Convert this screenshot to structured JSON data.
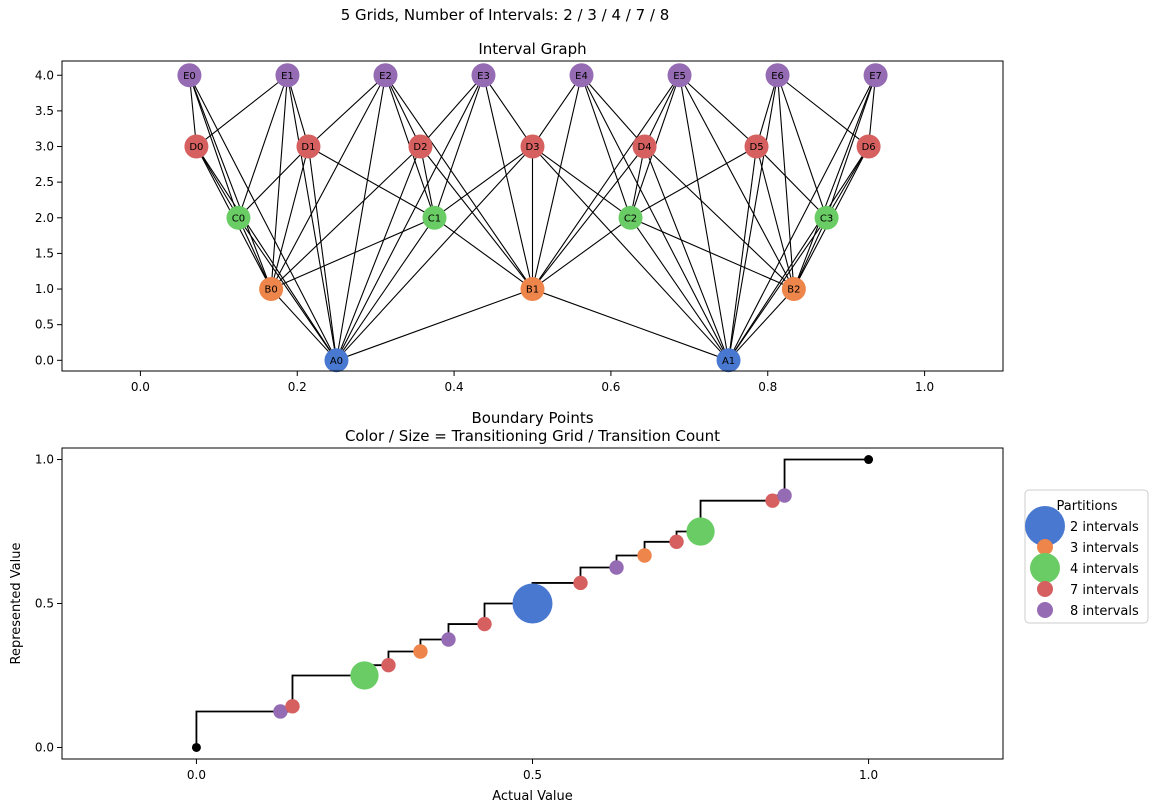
{
  "suptitle": "5 Grids, Number of Intervals: 2 / 3 / 4 / 7 / 8",
  "colors": {
    "grid_2": "#4878d0",
    "grid_3": "#ee854a",
    "grid_4": "#6acc64",
    "grid_7": "#d65f5f",
    "grid_8": "#956cb4"
  },
  "chart_data": [
    {
      "type": "scatter",
      "subtype": "network-graph",
      "title": "Interval Graph",
      "xlim": [
        -0.1,
        1.1
      ],
      "ylim": [
        -0.15,
        4.2
      ],
      "x_ticks": [
        0.0,
        0.2,
        0.4,
        0.6,
        0.8,
        1.0
      ],
      "x_tick_labels": [
        "0.0",
        "0.2",
        "0.4",
        "0.6",
        "0.8",
        "1.0"
      ],
      "y_ticks": [
        0.0,
        0.5,
        1.0,
        1.5,
        2.0,
        2.5,
        3.0,
        3.5,
        4.0
      ],
      "y_tick_labels": [
        "0.0",
        "0.5",
        "1.0",
        "1.5",
        "2.0",
        "2.5",
        "3.0",
        "3.5",
        "4.0"
      ],
      "grid": false,
      "levels": [
        {
          "prefix": "A",
          "intervals": 2,
          "y": 0,
          "color_key": "grid_2"
        },
        {
          "prefix": "B",
          "intervals": 3,
          "y": 1,
          "color_key": "grid_3"
        },
        {
          "prefix": "C",
          "intervals": 4,
          "y": 2,
          "color_key": "grid_4"
        },
        {
          "prefix": "D",
          "intervals": 7,
          "y": 3,
          "color_key": "grid_7"
        },
        {
          "prefix": "E",
          "intervals": 8,
          "y": 4,
          "color_key": "grid_8"
        }
      ],
      "nodes": [
        {
          "label": "A0",
          "x": 0.25,
          "y": 0
        },
        {
          "label": "A1",
          "x": 0.75,
          "y": 0
        },
        {
          "label": "B0",
          "x": 0.1667,
          "y": 1
        },
        {
          "label": "B1",
          "x": 0.5,
          "y": 1
        },
        {
          "label": "B2",
          "x": 0.8333,
          "y": 1
        },
        {
          "label": "C0",
          "x": 0.125,
          "y": 2
        },
        {
          "label": "C1",
          "x": 0.375,
          "y": 2
        },
        {
          "label": "C2",
          "x": 0.625,
          "y": 2
        },
        {
          "label": "C3",
          "x": 0.875,
          "y": 2
        },
        {
          "label": "D0",
          "x": 0.0714,
          "y": 3
        },
        {
          "label": "D1",
          "x": 0.2143,
          "y": 3
        },
        {
          "label": "D2",
          "x": 0.3571,
          "y": 3
        },
        {
          "label": "D3",
          "x": 0.5,
          "y": 3
        },
        {
          "label": "D4",
          "x": 0.6429,
          "y": 3
        },
        {
          "label": "D5",
          "x": 0.7857,
          "y": 3
        },
        {
          "label": "D6",
          "x": 0.9286,
          "y": 3
        },
        {
          "label": "E0",
          "x": 0.0625,
          "y": 4
        },
        {
          "label": "E1",
          "x": 0.1875,
          "y": 4
        },
        {
          "label": "E2",
          "x": 0.3125,
          "y": 4
        },
        {
          "label": "E3",
          "x": 0.4375,
          "y": 4
        },
        {
          "label": "E4",
          "x": 0.5625,
          "y": 4
        },
        {
          "label": "E5",
          "x": 0.6875,
          "y": 4
        },
        {
          "label": "E6",
          "x": 0.8125,
          "y": 4
        },
        {
          "label": "E7",
          "x": 0.9375,
          "y": 4
        }
      ],
      "edges_rule": "edge between any two nodes on different levels whose intervals overlap"
    },
    {
      "type": "scatter",
      "title": "Boundary Points\nColor / Size = Transitioning Grid / Transition Count",
      "xlabel": "Actual Value",
      "ylabel": "Represented Value",
      "xlim": [
        -0.2,
        1.2
      ],
      "ylim": [
        -0.04,
        1.04
      ],
      "x_ticks": [
        0.0,
        0.5,
        1.0
      ],
      "x_tick_labels": [
        "0.0",
        "0.5",
        "1.0"
      ],
      "y_ticks": [
        0.0,
        0.5,
        1.0
      ],
      "y_tick_labels": [
        "0.0",
        "0.5",
        "1.0"
      ],
      "grid": false,
      "step_line": [
        [
          0.0,
          0.0
        ],
        [
          0.0,
          0.125
        ],
        [
          0.1429,
          0.125
        ],
        [
          0.1429,
          0.25
        ],
        [
          0.25,
          0.25
        ],
        [
          0.25,
          0.2857
        ],
        [
          0.2857,
          0.2857
        ],
        [
          0.2857,
          0.3333
        ],
        [
          0.3333,
          0.3333
        ],
        [
          0.3333,
          0.375
        ],
        [
          0.375,
          0.375
        ],
        [
          0.375,
          0.4286
        ],
        [
          0.4286,
          0.4286
        ],
        [
          0.4286,
          0.5
        ],
        [
          0.5,
          0.5
        ],
        [
          0.5,
          0.5714
        ],
        [
          0.5714,
          0.5714
        ],
        [
          0.5714,
          0.625
        ],
        [
          0.625,
          0.625
        ],
        [
          0.625,
          0.6667
        ],
        [
          0.6667,
          0.6667
        ],
        [
          0.6667,
          0.7143
        ],
        [
          0.7143,
          0.7143
        ],
        [
          0.7143,
          0.75
        ],
        [
          0.75,
          0.75
        ],
        [
          0.75,
          0.8571
        ],
        [
          0.8571,
          0.8571
        ],
        [
          0.8571,
          0.875
        ],
        [
          0.875,
          0.875
        ],
        [
          0.875,
          1.0
        ],
        [
          1.0,
          1.0
        ]
      ],
      "endpoints": [
        {
          "x": 0.0,
          "y": 0.0
        },
        {
          "x": 1.0,
          "y": 1.0
        }
      ],
      "points": [
        {
          "x": 0.125,
          "y": 0.125,
          "grid": 8,
          "count": 1
        },
        {
          "x": 0.1429,
          "y": 0.1429,
          "grid": 7,
          "count": 1
        },
        {
          "x": 0.25,
          "y": 0.25,
          "grid": 4,
          "count": 2
        },
        {
          "x": 0.2857,
          "y": 0.2857,
          "grid": 7,
          "count": 1
        },
        {
          "x": 0.3333,
          "y": 0.3333,
          "grid": 3,
          "count": 1
        },
        {
          "x": 0.375,
          "y": 0.375,
          "grid": 8,
          "count": 1
        },
        {
          "x": 0.4286,
          "y": 0.4286,
          "grid": 7,
          "count": 1
        },
        {
          "x": 0.5,
          "y": 0.5,
          "grid": 2,
          "count": 4
        },
        {
          "x": 0.5714,
          "y": 0.5714,
          "grid": 7,
          "count": 1
        },
        {
          "x": 0.625,
          "y": 0.625,
          "grid": 8,
          "count": 1
        },
        {
          "x": 0.6667,
          "y": 0.6667,
          "grid": 3,
          "count": 1
        },
        {
          "x": 0.7143,
          "y": 0.7143,
          "grid": 7,
          "count": 1
        },
        {
          "x": 0.75,
          "y": 0.75,
          "grid": 4,
          "count": 2
        },
        {
          "x": 0.8571,
          "y": 0.8571,
          "grid": 7,
          "count": 1
        },
        {
          "x": 0.875,
          "y": 0.875,
          "grid": 8,
          "count": 1
        }
      ],
      "legend": {
        "title": "Partitions",
        "placement": "outside right",
        "entries": [
          {
            "label": "2 intervals",
            "grid": 2
          },
          {
            "label": "3 intervals",
            "grid": 3
          },
          {
            "label": "4 intervals",
            "grid": 4
          },
          {
            "label": "7 intervals",
            "grid": 7
          },
          {
            "label": "8 intervals",
            "grid": 8
          }
        ]
      }
    }
  ]
}
